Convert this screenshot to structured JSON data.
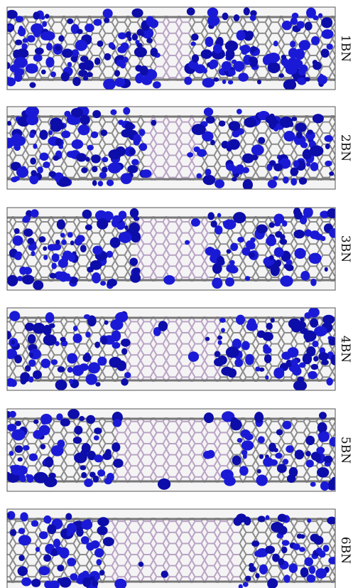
{
  "panels": [
    {
      "label": "1BN"
    },
    {
      "label": "2BN"
    },
    {
      "label": "3BN"
    },
    {
      "label": "4BN"
    },
    {
      "label": "5BN"
    },
    {
      "label": "6BN"
    }
  ]
}
